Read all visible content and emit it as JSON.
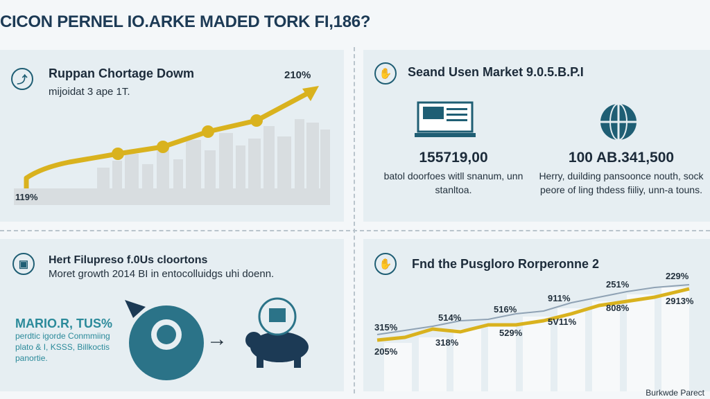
{
  "title": "CICON PERNEL IO.ARKE MADED TORK FI,186?",
  "panel1": {
    "icon": "growth-icon",
    "heading": "Ruppan Chortage Dowm",
    "subtitle": "mijoidat 3 ape 1T.",
    "top_value": "210%",
    "bottom_value": "119%"
  },
  "panel2": {
    "icon": "hand-icon",
    "heading": "Seand Usen Market 9.0.5.B.P.I",
    "stat_left": "155719,00",
    "desc_left": "batol doorfoes witll snanum, unn stanltoa.",
    "stat_right": "100 AB.341,500",
    "desc_right": "Herry, duilding pansoonce nouth, sock peore of ling thdess fiiliy, unn-a touns."
  },
  "panel3": {
    "icon": "box-icon",
    "heading": "Hert Filupreso f.0Us cloortons",
    "subtitle": "Moret growth 2014 BI in entocolluidgs uhi doenn.",
    "stat": "MARIO.R, TUS%",
    "desc": "perdtic igorde Conmmiing plato & I, KSSS, Billkoctis panortie.",
    "arrow": "→"
  },
  "panel4": {
    "icon": "hand-icon",
    "heading": "Fnd the Pusgloro Rorperonne 2",
    "labels": [
      "315%",
      "205%",
      "514%",
      "318%",
      "516%",
      "529%",
      "911%",
      "5V11%",
      "251%",
      "808%",
      "229%",
      "2913%"
    ]
  },
  "footer": "Burkwde Parect",
  "colors": {
    "accent": "#d9b21e",
    "teal": "#2b8a9a",
    "navy": "#1f5e74"
  }
}
